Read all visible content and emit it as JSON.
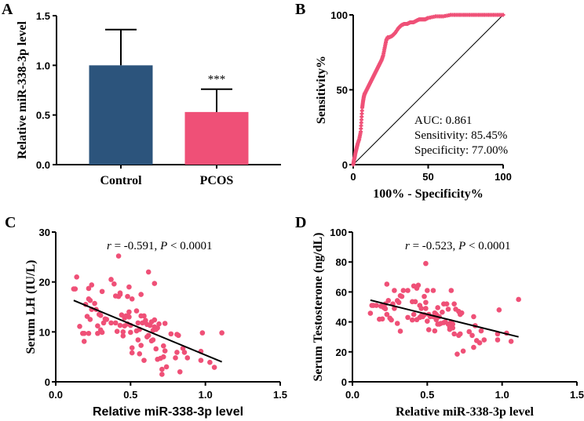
{
  "chart_data": [
    {
      "panel": "A",
      "type": "bar",
      "title": "",
      "xlabel": "",
      "ylabel": "Relative miR-338-3p level",
      "ylim": [
        0,
        1.5
      ],
      "yticks": [
        "0.0",
        "0.5",
        "1.0",
        "1.5"
      ],
      "yticks_values": [
        0,
        0.5,
        1.0,
        1.5
      ],
      "categories": [
        "Control",
        "PCOS"
      ],
      "values": [
        1.0,
        0.53
      ],
      "errors": [
        0.36,
        0.23
      ],
      "colors": [
        "#2c547c",
        "#ef5077"
      ],
      "annotations": [
        {
          "category": "PCOS",
          "text": "***"
        }
      ]
    },
    {
      "panel": "B",
      "type": "line",
      "title": "",
      "xlabel": "100% - Specificity%",
      "ylabel": "Sensitivity%",
      "xlim": [
        0,
        100
      ],
      "ylim": [
        0,
        100
      ],
      "xticks": [
        "0",
        "50",
        "100"
      ],
      "yticks": [
        "0",
        "50",
        "100"
      ],
      "color": "#ef5077",
      "series": [
        {
          "name": "ROC",
          "x": [
            0,
            0.5,
            1,
            1.5,
            2,
            2.5,
            3,
            4,
            5,
            5.5,
            6,
            6.5,
            7,
            7.5,
            8,
            9,
            10,
            11,
            12,
            13,
            14,
            15,
            16,
            17,
            18,
            19,
            20,
            21,
            22,
            23,
            24,
            26,
            28,
            30,
            32,
            34,
            36,
            38,
            40,
            42,
            44,
            46,
            48,
            50,
            55,
            60,
            65,
            70,
            75,
            80,
            85,
            90,
            95,
            100
          ],
          "y": [
            0,
            3,
            5,
            8,
            10,
            12,
            14,
            17,
            22,
            30,
            38,
            42,
            45,
            47,
            48,
            50,
            52,
            54,
            56,
            58,
            60,
            62,
            64,
            66,
            68,
            70,
            73,
            78,
            83,
            85,
            85,
            86,
            88,
            91,
            93,
            94,
            94,
            95,
            95,
            96,
            97,
            97,
            97,
            98,
            99,
            99,
            100,
            100,
            100,
            100,
            100,
            100,
            100,
            100
          ]
        },
        {
          "name": "Reference",
          "x": [
            0,
            100
          ],
          "y": [
            0,
            100
          ]
        }
      ],
      "annotations": [
        "AUC: 0.861",
        "Sensitivity: 85.45%",
        "Specificity: 77.00%"
      ]
    },
    {
      "panel": "C",
      "type": "scatter",
      "title": "",
      "annotation": {
        "r": "r",
        "eq": " = -0.591, ",
        "p": "P",
        "rest": " < 0.0001"
      },
      "xlabel": "Relative miR-338-3p level",
      "ylabel": "Serum LH (IU/L)",
      "xlim": [
        0,
        1.5
      ],
      "ylim": [
        0,
        30
      ],
      "xticks": [
        "0.0",
        "0.5",
        "1.0",
        "1.5"
      ],
      "yticks": [
        "0",
        "10",
        "20",
        "30"
      ],
      "color": "#ef5077",
      "trendline": {
        "x": [
          0.12,
          1.11
        ],
        "y": [
          16.3,
          4.0
        ]
      },
      "x": [
        0.12,
        0.13,
        0.14,
        0.16,
        0.18,
        0.19,
        0.19,
        0.2,
        0.21,
        0.22,
        0.22,
        0.22,
        0.23,
        0.23,
        0.24,
        0.24,
        0.26,
        0.27,
        0.28,
        0.28,
        0.29,
        0.3,
        0.3,
        0.31,
        0.31,
        0.32,
        0.33,
        0.34,
        0.37,
        0.37,
        0.39,
        0.4,
        0.4,
        0.41,
        0.42,
        0.42,
        0.43,
        0.43,
        0.43,
        0.44,
        0.45,
        0.45,
        0.46,
        0.46,
        0.47,
        0.48,
        0.48,
        0.49,
        0.49,
        0.49,
        0.5,
        0.5,
        0.51,
        0.51,
        0.51,
        0.54,
        0.54,
        0.55,
        0.55,
        0.56,
        0.56,
        0.57,
        0.57,
        0.57,
        0.58,
        0.59,
        0.59,
        0.6,
        0.61,
        0.61,
        0.62,
        0.62,
        0.63,
        0.64,
        0.64,
        0.65,
        0.65,
        0.66,
        0.66,
        0.66,
        0.67,
        0.67,
        0.68,
        0.68,
        0.69,
        0.7,
        0.71,
        0.71,
        0.72,
        0.72,
        0.73,
        0.73,
        0.74,
        0.77,
        0.8,
        0.81,
        0.81,
        0.82,
        0.83,
        0.85,
        0.86,
        0.88,
        0.97,
        0.97,
        0.98,
        1.03,
        1.06,
        1.11
      ],
      "y": [
        18.6,
        18.6,
        21.0,
        11.1,
        9.7,
        8.1,
        9.7,
        15.5,
        13.1,
        9.7,
        18.7,
        16.6,
        12.5,
        16.3,
        14.5,
        19.4,
        15.7,
        14.5,
        11.2,
        9.7,
        13.5,
        13.3,
        10.4,
        18.1,
        9.9,
        11.8,
        12.6,
        12.5,
        11.8,
        20.5,
        19.6,
        11.8,
        17.2,
        10.1,
        25.2,
        17.1,
        11.3,
        17.5,
        17.8,
        13.4,
        9.2,
        10.0,
        12.8,
        11.2,
        13.2,
        17.1,
        11.6,
        19.0,
        13.0,
        14.0,
        11.3,
        9.9,
        16.6,
        6.8,
        5.8,
        14.2,
        10.2,
        11.8,
        8.4,
        10.5,
        5.6,
        7.3,
        13.2,
        17.5,
        11.8,
        4.3,
        13.2,
        12.3,
        11.5,
        9.0,
        22.0,
        9.3,
        11.3,
        8.2,
        12.0,
        8.4,
        10.3,
        19.7,
        11.0,
        12.4,
        10.5,
        6.6,
        4.5,
        10.8,
        11.6,
        4.7,
        1.5,
        2.5,
        7.2,
        5.0,
        11.7,
        6.2,
        3.0,
        9.6,
        4.8,
        9.5,
        5.9,
        9.3,
        2.0,
        6.7,
        5.9,
        4.8,
        6.1,
        4.3,
        9.8,
        3.9,
        2.9,
        9.8
      ]
    },
    {
      "panel": "D",
      "type": "scatter",
      "title": "",
      "annotation": {
        "r": "r",
        "eq": " = -0.523, ",
        "p": "P",
        "rest": " < 0.0001"
      },
      "xlabel": "Relative miR-338-3p level",
      "ylabel": "Serum Testosterone (ng/dL)",
      "xlim": [
        0,
        1.5
      ],
      "ylim": [
        0,
        100
      ],
      "xticks": [
        "0.0",
        "0.5",
        "1.0",
        "1.5"
      ],
      "yticks": [
        "0",
        "20",
        "40",
        "60",
        "80",
        "100"
      ],
      "color": "#ef5077",
      "trendline": {
        "x": [
          0.12,
          1.11
        ],
        "y": [
          54.5,
          30.0
        ]
      },
      "x": [
        0.12,
        0.13,
        0.14,
        0.16,
        0.18,
        0.19,
        0.2,
        0.2,
        0.21,
        0.22,
        0.22,
        0.23,
        0.23,
        0.24,
        0.25,
        0.26,
        0.27,
        0.28,
        0.28,
        0.3,
        0.3,
        0.31,
        0.32,
        0.32,
        0.33,
        0.34,
        0.37,
        0.37,
        0.4,
        0.4,
        0.41,
        0.41,
        0.42,
        0.43,
        0.43,
        0.44,
        0.45,
        0.45,
        0.46,
        0.46,
        0.47,
        0.48,
        0.48,
        0.49,
        0.49,
        0.49,
        0.5,
        0.5,
        0.51,
        0.51,
        0.52,
        0.54,
        0.54,
        0.55,
        0.55,
        0.56,
        0.56,
        0.57,
        0.57,
        0.58,
        0.58,
        0.59,
        0.6,
        0.61,
        0.61,
        0.62,
        0.63,
        0.64,
        0.64,
        0.65,
        0.65,
        0.66,
        0.66,
        0.67,
        0.67,
        0.68,
        0.68,
        0.69,
        0.7,
        0.71,
        0.71,
        0.72,
        0.72,
        0.73,
        0.74,
        0.78,
        0.8,
        0.81,
        0.81,
        0.82,
        0.83,
        0.85,
        0.86,
        0.88,
        0.97,
        0.97,
        0.98,
        1.03,
        1.06,
        1.11
      ],
      "y": [
        45.8,
        51.0,
        51.0,
        51.0,
        41.8,
        50.5,
        51.0,
        42.0,
        49.5,
        52.0,
        48.8,
        45.0,
        65.2,
        54.3,
        42.5,
        41.3,
        52.0,
        49.0,
        61.0,
        39.0,
        54.2,
        53.0,
        57.5,
        33.8,
        57.0,
        61.0,
        43.0,
        61.0,
        53.5,
        41.3,
        64.0,
        45.0,
        53.5,
        62.5,
        41.5,
        64.5,
        43.0,
        51.0,
        44.0,
        49.0,
        43.5,
        57.0,
        44.8,
        53.0,
        49.0,
        79.0,
        40.5,
        61.0,
        45.0,
        34.8,
        43.5,
        61.0,
        43.5,
        34.0,
        46.0,
        45.0,
        41.5,
        38.5,
        49.5,
        43.5,
        38.5,
        39.0,
        46.5,
        39.5,
        52.0,
        40.0,
        52.0,
        38.5,
        48.5,
        35.0,
        36.5,
        61.0,
        40.0,
        38.5,
        36.0,
        52.0,
        32.0,
        48.5,
        18.5,
        31.0,
        47.0,
        45.0,
        32.0,
        46.0,
        20.5,
        33.5,
        31.0,
        23.0,
        43.5,
        37.5,
        27.5,
        26.0,
        34.0,
        28.0,
        32.0,
        28.0,
        48.0,
        32.5,
        27.0,
        55.0
      ]
    }
  ],
  "panel_labels": [
    "A",
    "B",
    "C",
    "D"
  ]
}
